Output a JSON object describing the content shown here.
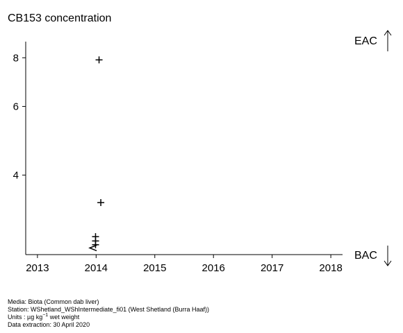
{
  "chart_data": {
    "type": "scatter",
    "title": "CB153 concentration",
    "xlabel": "",
    "ylabel": "",
    "log_scale_y": true,
    "xlim": [
      2012.8,
      2018.2
    ],
    "ylim": [
      2.5,
      8.8
    ],
    "x_ticks": [
      2013,
      2014,
      2015,
      2016,
      2017,
      2018
    ],
    "y_ticks": [
      4,
      6,
      8
    ],
    "grid": false,
    "points": [
      {
        "x": 2014.05,
        "y": 7.9,
        "marker": "+"
      },
      {
        "x": 2014.08,
        "y": 3.4,
        "marker": "+"
      },
      {
        "x": 2013.99,
        "y": 2.78,
        "marker": "+"
      },
      {
        "x": 2013.99,
        "y": 2.71,
        "marker": "+"
      },
      {
        "x": 2013.99,
        "y": 2.65,
        "marker": "+"
      },
      {
        "x": 2013.95,
        "y": 2.6,
        "marker": "<"
      }
    ],
    "thresholds": [
      {
        "label": "EAC",
        "direction": "up"
      },
      {
        "label": "BAC",
        "direction": "down"
      }
    ]
  },
  "footer": {
    "media": "Media: Biota (Common dab liver)",
    "station": "Station: WShetland_WShIntermediate_fi01 (West Shetland (Burra Haaf))",
    "units_prefix": "Units : µg kg",
    "units_exp": "−1",
    "units_suffix": " wet weight",
    "extraction": "Data extraction: 30 April 2020"
  }
}
